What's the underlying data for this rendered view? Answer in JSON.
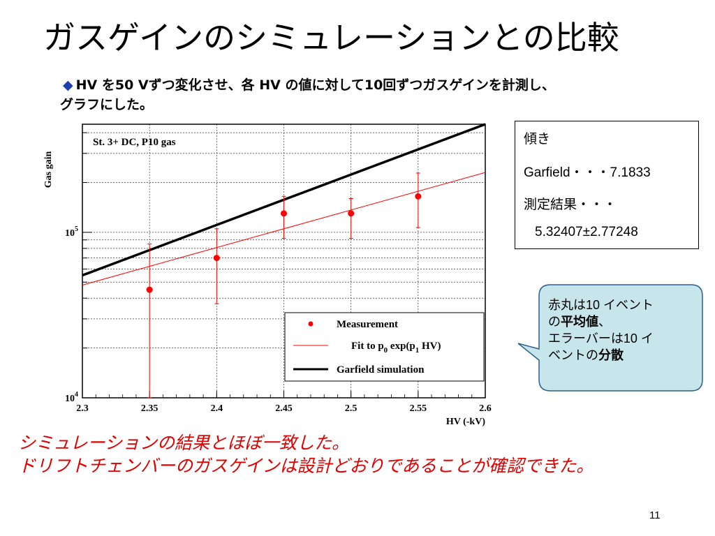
{
  "slide": {
    "title": "ガスゲインのシミュレーションとの比較",
    "desc_line1": "HV を50 Vずつ変化させ、各 HV の値に対して10回ずつガスゲインを計測し、",
    "desc_line2": "グラフにした。",
    "bullet": "◆",
    "page_number": "11"
  },
  "slope_box": {
    "heading": "傾き",
    "garfield": "Garfield・・・7.1833",
    "measured_label": "測定結果・・・",
    "measured_value": "5.32407±2.77248"
  },
  "callout": {
    "line1_a": "赤丸は10 イベント",
    "line2_a": "の",
    "line2_b": "平均値",
    "line2_c": "、",
    "line3": "エラーバーは10 イ",
    "line4_a": "ベントの",
    "line4_b": "分散",
    "fill_color": "#c7e6ec",
    "border_color": "#2a5f8a"
  },
  "conclusion": {
    "line1": "シミュレーションの結果とほぼ一致した。",
    "line2": "ドリフトチェンバーのガスゲインは設計どおりであることが確認できた。"
  },
  "chart_data": {
    "type": "scatter",
    "title": "St. 3+ DC, P10 gas",
    "xlabel": "HV (-kV)",
    "ylabel": "Gas gain",
    "xlim": [
      2.3,
      2.6
    ],
    "ylim": [
      10000,
      450000
    ],
    "ylog": true,
    "grid": true,
    "x_ticks": [
      "2.3",
      "2.35",
      "2.4",
      "2.45",
      "2.5",
      "2.55",
      "2.6"
    ],
    "y_ticks": [
      {
        "label": "10",
        "sup": "5",
        "value": 100000
      },
      {
        "label": "10",
        "sup": "4",
        "value": 10000
      }
    ],
    "legend_position": "bottom-right",
    "series": [
      {
        "name": "Measurement",
        "kind": "points",
        "color": "#ff0000",
        "x": [
          2.35,
          2.4,
          2.45,
          2.5,
          2.55
        ],
        "y": [
          45000,
          70000,
          130000,
          130000,
          165000
        ],
        "err_low": [
          10000,
          37000,
          92000,
          92000,
          107000
        ],
        "err_high": [
          85000,
          105000,
          165000,
          160000,
          228000
        ]
      },
      {
        "name": "Fit to p_0 exp(p_1 HV)",
        "legend_parts": [
          "Fit to p",
          "0",
          " exp(p",
          "1",
          " HV)"
        ],
        "kind": "line",
        "color": "#ff0000",
        "x": [
          2.3,
          2.6
        ],
        "y": [
          48000,
          230000
        ]
      },
      {
        "name": "Garfield simulation",
        "kind": "line",
        "color": "#000000",
        "x": [
          2.3,
          2.6
        ],
        "y": [
          55000,
          450000
        ]
      }
    ]
  }
}
